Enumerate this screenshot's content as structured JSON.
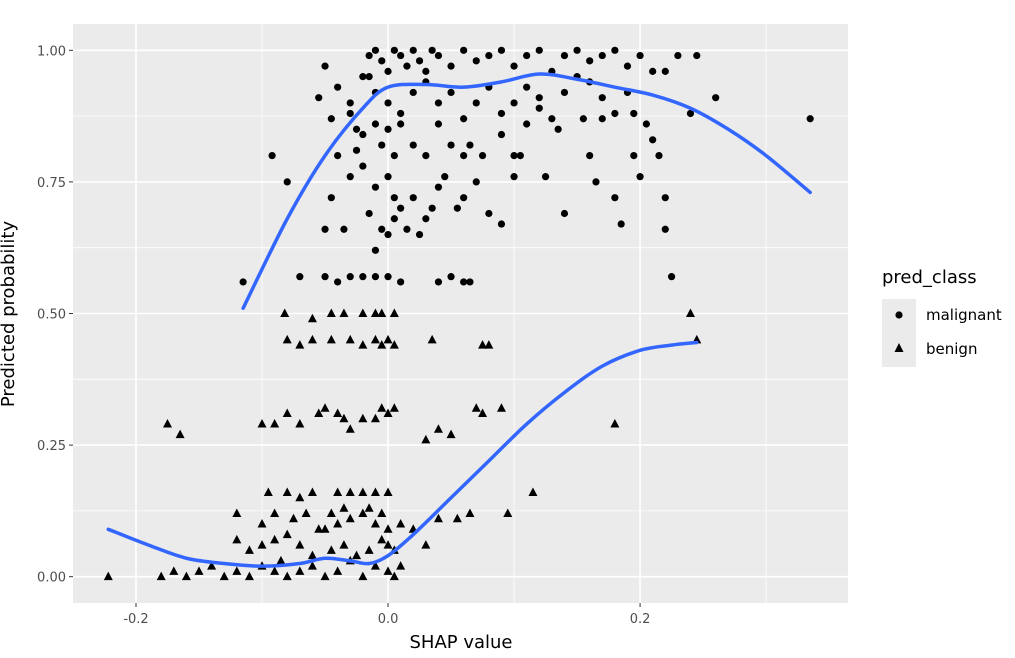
{
  "chart_data": {
    "type": "scatter",
    "xlabel": "SHAP value",
    "ylabel": "Predicted probability",
    "xlim": [
      -0.25,
      0.365
    ],
    "ylim": [
      -0.05,
      1.05
    ],
    "x_ticks": [
      -0.2,
      0.0,
      0.2
    ],
    "x_tick_labels": [
      "-0.2",
      "0.0",
      "0.2"
    ],
    "y_ticks": [
      0.0,
      0.25,
      0.5,
      0.75,
      1.0
    ],
    "y_tick_labels": [
      "0.00",
      "0.25",
      "0.50",
      "0.75",
      "1.00"
    ],
    "grid": true,
    "panel_background": "#ebebeb",
    "point_color": "#000000",
    "smooth_color": "#3366ff",
    "legend": {
      "title": "pred_class",
      "placement": "right",
      "entries": [
        {
          "label": "malignant",
          "shape": "circle"
        },
        {
          "label": "benign",
          "shape": "triangle"
        }
      ]
    },
    "series": [
      {
        "name": "malignant",
        "shape": "circle",
        "points": [
          [
            -0.115,
            0.56
          ],
          [
            -0.092,
            0.8
          ],
          [
            -0.08,
            0.75
          ],
          [
            -0.05,
            0.97
          ],
          [
            -0.04,
            0.93
          ],
          [
            -0.045,
            0.72
          ],
          [
            -0.05,
            0.66
          ],
          [
            -0.03,
            0.9
          ],
          [
            -0.025,
            0.85
          ],
          [
            -0.035,
            0.66
          ],
          [
            -0.03,
            0.76
          ],
          [
            -0.02,
            0.95
          ],
          [
            -0.015,
            0.99
          ],
          [
            -0.01,
            1.0
          ],
          [
            -0.005,
            0.98
          ],
          [
            0.0,
            0.96
          ],
          [
            0.005,
            1.0
          ],
          [
            0.01,
            0.99
          ],
          [
            0.015,
            0.97
          ],
          [
            0.02,
            1.0
          ],
          [
            0.025,
            0.98
          ],
          [
            0.03,
            0.96
          ],
          [
            0.035,
            1.0
          ],
          [
            0.04,
            0.99
          ],
          [
            0.05,
            0.97
          ],
          [
            0.06,
            1.0
          ],
          [
            0.07,
            0.98
          ],
          [
            0.08,
            0.99
          ],
          [
            0.09,
            1.0
          ],
          [
            0.1,
            0.97
          ],
          [
            0.11,
            0.99
          ],
          [
            0.12,
            1.0
          ],
          [
            0.13,
            0.96
          ],
          [
            0.14,
            0.99
          ],
          [
            0.15,
            1.0
          ],
          [
            0.16,
            0.98
          ],
          [
            0.17,
            0.99
          ],
          [
            0.18,
            1.0
          ],
          [
            0.19,
            0.97
          ],
          [
            0.2,
            0.99
          ],
          [
            0.21,
            0.96
          ],
          [
            0.22,
            0.96
          ],
          [
            0.23,
            0.99
          ],
          [
            -0.015,
            0.95
          ],
          [
            -0.01,
            0.92
          ],
          [
            0.0,
            0.9
          ],
          [
            0.01,
            0.88
          ],
          [
            0.02,
            0.92
          ],
          [
            0.03,
            0.94
          ],
          [
            0.04,
            0.9
          ],
          [
            0.05,
            0.92
          ],
          [
            0.06,
            0.87
          ],
          [
            0.07,
            0.9
          ],
          [
            0.08,
            0.93
          ],
          [
            0.09,
            0.88
          ],
          [
            0.1,
            0.9
          ],
          [
            0.11,
            0.93
          ],
          [
            0.12,
            0.91
          ],
          [
            0.13,
            0.87
          ],
          [
            0.14,
            0.92
          ],
          [
            0.15,
            0.95
          ],
          [
            0.16,
            0.94
          ],
          [
            0.17,
            0.91
          ],
          [
            0.18,
            0.88
          ],
          [
            0.19,
            0.92
          ],
          [
            -0.01,
            0.86
          ],
          [
            -0.005,
            0.82
          ],
          [
            0.0,
            0.85
          ],
          [
            0.005,
            0.8
          ],
          [
            0.01,
            0.86
          ],
          [
            0.02,
            0.82
          ],
          [
            0.03,
            0.8
          ],
          [
            0.04,
            0.86
          ],
          [
            0.05,
            0.82
          ],
          [
            0.06,
            0.8
          ],
          [
            -0.02,
            0.78
          ],
          [
            -0.01,
            0.74
          ],
          [
            0.0,
            0.76
          ],
          [
            0.005,
            0.72
          ],
          [
            0.01,
            0.7
          ],
          [
            0.02,
            0.72
          ],
          [
            0.03,
            0.68
          ],
          [
            0.04,
            0.74
          ],
          [
            0.06,
            0.72
          ],
          [
            0.07,
            0.75
          ],
          [
            0.08,
            0.69
          ],
          [
            0.09,
            0.67
          ],
          [
            -0.015,
            0.69
          ],
          [
            -0.005,
            0.66
          ],
          [
            0.0,
            0.65
          ],
          [
            0.005,
            0.68
          ],
          [
            0.015,
            0.66
          ],
          [
            0.025,
            0.65
          ],
          [
            0.035,
            0.7
          ],
          [
            -0.01,
            0.62
          ],
          [
            -0.07,
            0.57
          ],
          [
            -0.05,
            0.57
          ],
          [
            -0.04,
            0.56
          ],
          [
            -0.03,
            0.57
          ],
          [
            -0.02,
            0.57
          ],
          [
            -0.01,
            0.57
          ],
          [
            0.0,
            0.57
          ],
          [
            0.01,
            0.56
          ],
          [
            0.04,
            0.56
          ],
          [
            0.05,
            0.57
          ],
          [
            0.06,
            0.56
          ],
          [
            0.065,
            0.56
          ],
          [
            0.1,
            0.8
          ],
          [
            0.105,
            0.8
          ],
          [
            0.1,
            0.76
          ],
          [
            0.125,
            0.76
          ],
          [
            0.14,
            0.69
          ],
          [
            0.16,
            0.8
          ],
          [
            0.165,
            0.75
          ],
          [
            0.18,
            0.72
          ],
          [
            0.185,
            0.67
          ],
          [
            0.195,
            0.8
          ],
          [
            0.2,
            0.76
          ],
          [
            0.21,
            0.83
          ],
          [
            0.215,
            0.8
          ],
          [
            0.22,
            0.72
          ],
          [
            0.22,
            0.66
          ],
          [
            0.225,
            0.57
          ],
          [
            0.24,
            0.88
          ],
          [
            0.245,
            0.99
          ],
          [
            0.26,
            0.91
          ],
          [
            0.335,
            0.87
          ],
          [
            0.195,
            0.88
          ],
          [
            0.205,
            0.86
          ],
          [
            0.17,
            0.87
          ],
          [
            0.155,
            0.87
          ],
          [
            0.135,
            0.85
          ],
          [
            0.12,
            0.89
          ],
          [
            0.09,
            0.84
          ],
          [
            0.11,
            0.86
          ],
          [
            0.075,
            0.8
          ],
          [
            0.065,
            0.82
          ],
          [
            0.045,
            0.76
          ],
          [
            0.055,
            0.7
          ],
          [
            -0.02,
            0.84
          ],
          [
            -0.03,
            0.88
          ],
          [
            -0.025,
            0.81
          ],
          [
            -0.04,
            0.8
          ],
          [
            -0.045,
            0.87
          ],
          [
            -0.055,
            0.91
          ]
        ]
      },
      {
        "name": "benign",
        "shape": "triangle",
        "points": [
          [
            -0.222,
            0.0
          ],
          [
            -0.18,
            0.0
          ],
          [
            -0.175,
            0.29
          ],
          [
            -0.165,
            0.27
          ],
          [
            -0.17,
            0.01
          ],
          [
            -0.16,
            0.0
          ],
          [
            -0.15,
            0.01
          ],
          [
            -0.14,
            0.02
          ],
          [
            -0.13,
            0.0
          ],
          [
            -0.12,
            0.01
          ],
          [
            -0.11,
            0.0
          ],
          [
            -0.1,
            0.02
          ],
          [
            -0.09,
            0.01
          ],
          [
            -0.08,
            0.0
          ],
          [
            -0.07,
            0.01
          ],
          [
            -0.06,
            0.02
          ],
          [
            -0.05,
            0.0
          ],
          [
            -0.04,
            0.01
          ],
          [
            -0.03,
            0.03
          ],
          [
            -0.02,
            0.0
          ],
          [
            -0.01,
            0.02
          ],
          [
            0.0,
            0.01
          ],
          [
            0.005,
            0.0
          ],
          [
            0.01,
            0.02
          ],
          [
            -0.085,
            0.03
          ],
          [
            -0.06,
            0.04
          ],
          [
            -0.045,
            0.05
          ],
          [
            -0.035,
            0.06
          ],
          [
            -0.025,
            0.04
          ],
          [
            -0.015,
            0.05
          ],
          [
            -0.005,
            0.07
          ],
          [
            0.0,
            0.06
          ],
          [
            0.005,
            0.05
          ],
          [
            -0.12,
            0.07
          ],
          [
            -0.11,
            0.05
          ],
          [
            -0.1,
            0.06
          ],
          [
            -0.09,
            0.07
          ],
          [
            -0.08,
            0.08
          ],
          [
            -0.07,
            0.06
          ],
          [
            -0.05,
            0.09
          ],
          [
            -0.04,
            0.1
          ],
          [
            -0.03,
            0.11
          ],
          [
            -0.02,
            0.12
          ],
          [
            -0.01,
            0.1
          ],
          [
            0.0,
            0.09
          ],
          [
            -0.12,
            0.12
          ],
          [
            -0.1,
            0.1
          ],
          [
            -0.09,
            0.12
          ],
          [
            -0.075,
            0.11
          ],
          [
            -0.065,
            0.12
          ],
          [
            -0.055,
            0.09
          ],
          [
            -0.045,
            0.12
          ],
          [
            -0.035,
            0.13
          ],
          [
            -0.015,
            0.13
          ],
          [
            -0.005,
            0.12
          ],
          [
            -0.095,
            0.16
          ],
          [
            -0.08,
            0.16
          ],
          [
            -0.07,
            0.15
          ],
          [
            -0.06,
            0.16
          ],
          [
            -0.04,
            0.16
          ],
          [
            -0.03,
            0.16
          ],
          [
            -0.02,
            0.16
          ],
          [
            -0.01,
            0.16
          ],
          [
            0.0,
            0.16
          ],
          [
            -0.1,
            0.29
          ],
          [
            -0.09,
            0.29
          ],
          [
            -0.08,
            0.31
          ],
          [
            -0.07,
            0.29
          ],
          [
            -0.055,
            0.31
          ],
          [
            -0.05,
            0.32
          ],
          [
            -0.04,
            0.31
          ],
          [
            -0.035,
            0.3
          ],
          [
            -0.03,
            0.28
          ],
          [
            -0.02,
            0.3
          ],
          [
            -0.01,
            0.3
          ],
          [
            -0.005,
            0.32
          ],
          [
            0.0,
            0.31
          ],
          [
            0.005,
            0.32
          ],
          [
            0.03,
            0.26
          ],
          [
            0.04,
            0.28
          ],
          [
            0.05,
            0.27
          ],
          [
            0.07,
            0.32
          ],
          [
            0.075,
            0.31
          ],
          [
            0.09,
            0.32
          ],
          [
            -0.08,
            0.45
          ],
          [
            -0.07,
            0.44
          ],
          [
            -0.06,
            0.45
          ],
          [
            -0.045,
            0.45
          ],
          [
            -0.03,
            0.45
          ],
          [
            -0.02,
            0.44
          ],
          [
            -0.01,
            0.45
          ],
          [
            -0.005,
            0.44
          ],
          [
            0.0,
            0.45
          ],
          [
            0.005,
            0.44
          ],
          [
            0.035,
            0.45
          ],
          [
            0.075,
            0.44
          ],
          [
            0.08,
            0.44
          ],
          [
            -0.082,
            0.5
          ],
          [
            -0.06,
            0.49
          ],
          [
            -0.045,
            0.5
          ],
          [
            -0.035,
            0.5
          ],
          [
            -0.02,
            0.5
          ],
          [
            -0.01,
            0.5
          ],
          [
            -0.005,
            0.5
          ],
          [
            0.005,
            0.5
          ],
          [
            0.01,
            0.1
          ],
          [
            0.02,
            0.09
          ],
          [
            0.03,
            0.06
          ],
          [
            0.04,
            0.11
          ],
          [
            0.055,
            0.11
          ],
          [
            0.065,
            0.12
          ],
          [
            0.095,
            0.12
          ],
          [
            0.115,
            0.16
          ],
          [
            0.18,
            0.29
          ],
          [
            0.24,
            0.5
          ],
          [
            0.245,
            0.45
          ]
        ]
      }
    ],
    "smooth_lines": [
      {
        "name": "malignant",
        "points": [
          [
            -0.115,
            0.51
          ],
          [
            -0.08,
            0.68
          ],
          [
            -0.05,
            0.8
          ],
          [
            -0.02,
            0.89
          ],
          [
            0.0,
            0.93
          ],
          [
            0.03,
            0.935
          ],
          [
            0.06,
            0.93
          ],
          [
            0.09,
            0.94
          ],
          [
            0.12,
            0.955
          ],
          [
            0.15,
            0.945
          ],
          [
            0.18,
            0.93
          ],
          [
            0.21,
            0.915
          ],
          [
            0.24,
            0.89
          ],
          [
            0.27,
            0.85
          ],
          [
            0.3,
            0.8
          ],
          [
            0.335,
            0.73
          ]
        ]
      },
      {
        "name": "benign",
        "points": [
          [
            -0.222,
            0.09
          ],
          [
            -0.19,
            0.06
          ],
          [
            -0.16,
            0.035
          ],
          [
            -0.13,
            0.025
          ],
          [
            -0.1,
            0.02
          ],
          [
            -0.07,
            0.025
          ],
          [
            -0.05,
            0.035
          ],
          [
            -0.03,
            0.03
          ],
          [
            -0.015,
            0.025
          ],
          [
            0.0,
            0.04
          ],
          [
            0.02,
            0.08
          ],
          [
            0.05,
            0.15
          ],
          [
            0.08,
            0.22
          ],
          [
            0.11,
            0.29
          ],
          [
            0.14,
            0.35
          ],
          [
            0.17,
            0.4
          ],
          [
            0.2,
            0.43
          ],
          [
            0.225,
            0.44
          ],
          [
            0.245,
            0.445
          ]
        ]
      }
    ]
  }
}
